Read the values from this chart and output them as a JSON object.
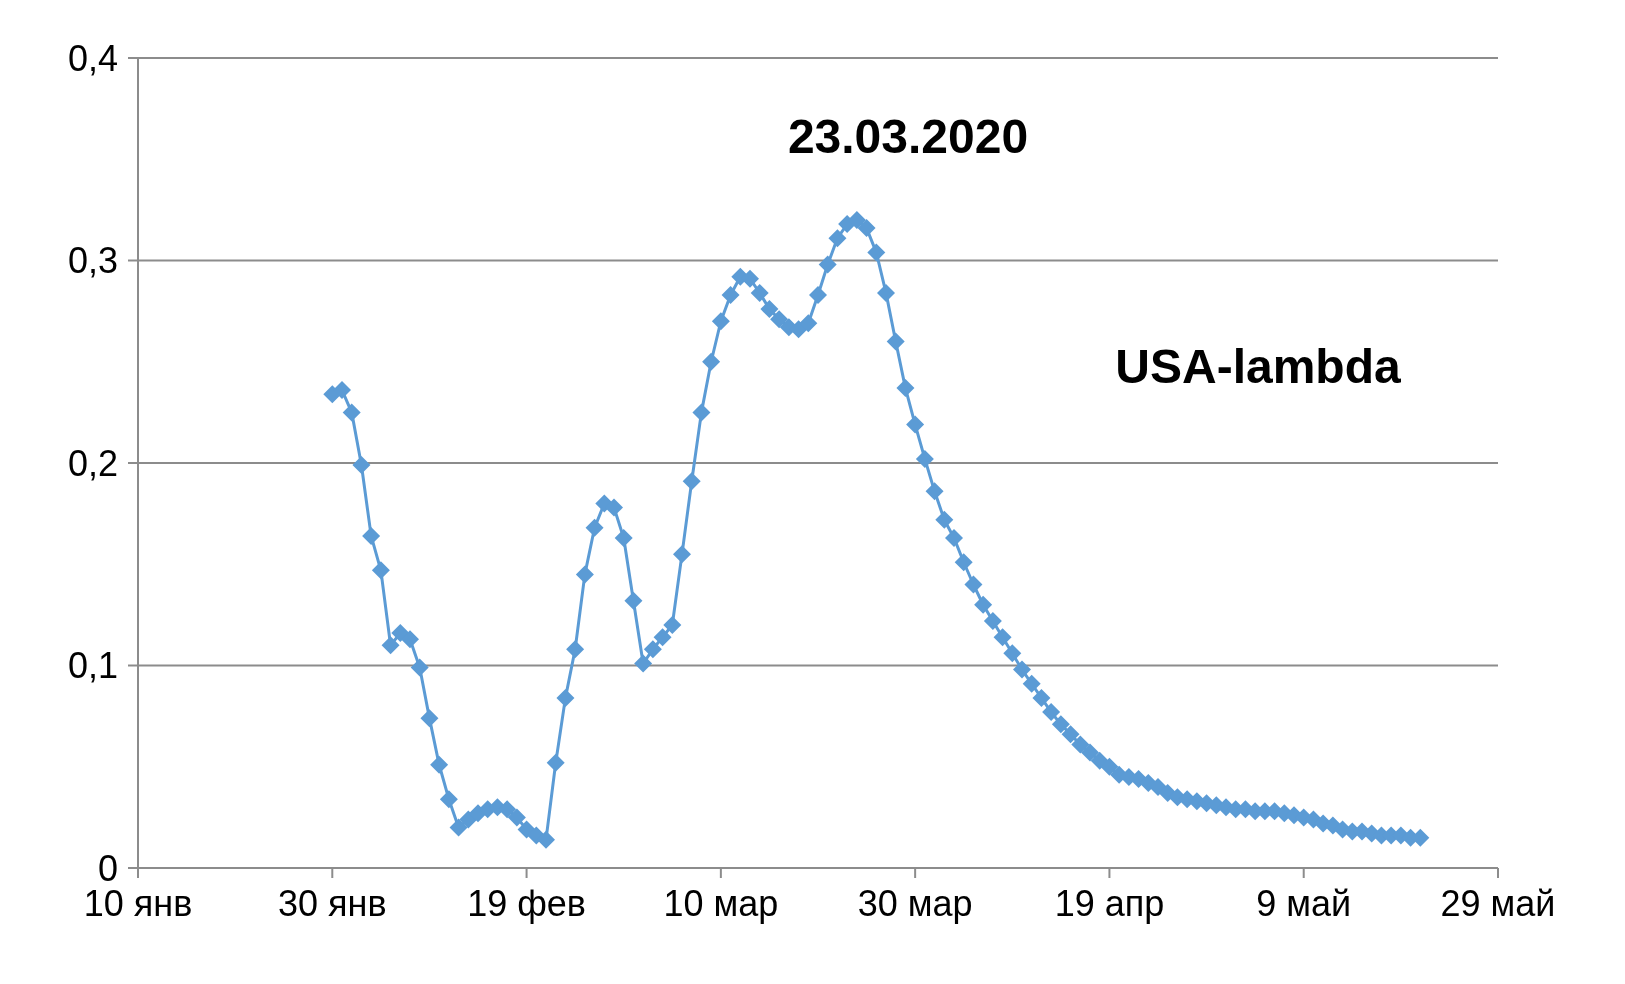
{
  "chart_data": {
    "type": "line",
    "annotations": [
      "23.03.2020"
    ],
    "x": [
      "2020-01-30",
      "2020-01-31",
      "2020-02-01",
      "2020-02-02",
      "2020-02-03",
      "2020-02-04",
      "2020-02-05",
      "2020-02-06",
      "2020-02-07",
      "2020-02-08",
      "2020-02-09",
      "2020-02-10",
      "2020-02-11",
      "2020-02-12",
      "2020-02-13",
      "2020-02-14",
      "2020-02-15",
      "2020-02-16",
      "2020-02-17",
      "2020-02-18",
      "2020-02-19",
      "2020-02-20",
      "2020-02-21",
      "2020-02-22",
      "2020-02-23",
      "2020-02-24",
      "2020-02-25",
      "2020-02-26",
      "2020-02-27",
      "2020-02-28",
      "2020-02-29",
      "2020-03-01",
      "2020-03-02",
      "2020-03-03",
      "2020-03-04",
      "2020-03-05",
      "2020-03-06",
      "2020-03-07",
      "2020-03-08",
      "2020-03-09",
      "2020-03-10",
      "2020-03-11",
      "2020-03-12",
      "2020-03-13",
      "2020-03-14",
      "2020-03-15",
      "2020-03-16",
      "2020-03-17",
      "2020-03-18",
      "2020-03-19",
      "2020-03-20",
      "2020-03-21",
      "2020-03-22",
      "2020-03-23",
      "2020-03-24",
      "2020-03-25",
      "2020-03-26",
      "2020-03-27",
      "2020-03-28",
      "2020-03-29",
      "2020-03-30",
      "2020-03-31",
      "2020-04-01",
      "2020-04-02",
      "2020-04-03",
      "2020-04-04",
      "2020-04-05",
      "2020-04-06",
      "2020-04-07",
      "2020-04-08",
      "2020-04-09",
      "2020-04-10",
      "2020-04-11",
      "2020-04-12",
      "2020-04-13",
      "2020-04-14",
      "2020-04-15",
      "2020-04-16",
      "2020-04-17",
      "2020-04-18",
      "2020-04-19",
      "2020-04-20",
      "2020-04-21",
      "2020-04-22",
      "2020-04-23",
      "2020-04-24",
      "2020-04-25",
      "2020-04-26",
      "2020-04-27",
      "2020-04-28",
      "2020-04-29",
      "2020-04-30",
      "2020-05-01",
      "2020-05-02",
      "2020-05-03",
      "2020-05-04",
      "2020-05-05",
      "2020-05-06",
      "2020-05-07",
      "2020-05-08",
      "2020-05-09",
      "2020-05-10",
      "2020-05-11",
      "2020-05-12",
      "2020-05-13",
      "2020-05-14",
      "2020-05-15",
      "2020-05-16",
      "2020-05-17",
      "2020-05-18",
      "2020-05-19",
      "2020-05-20",
      "2020-05-21"
    ],
    "series": [
      {
        "name": "USA-lambda",
        "color": "#5b9bd5",
        "values": [
          0.234,
          0.236,
          0.225,
          0.199,
          0.164,
          0.147,
          0.11,
          0.116,
          0.113,
          0.099,
          0.074,
          0.051,
          0.034,
          0.02,
          0.024,
          0.027,
          0.029,
          0.03,
          0.029,
          0.025,
          0.019,
          0.016,
          0.014,
          0.052,
          0.084,
          0.108,
          0.145,
          0.168,
          0.18,
          0.178,
          0.163,
          0.132,
          0.101,
          0.108,
          0.114,
          0.12,
          0.155,
          0.191,
          0.225,
          0.25,
          0.27,
          0.283,
          0.292,
          0.291,
          0.284,
          0.276,
          0.271,
          0.267,
          0.266,
          0.269,
          0.283,
          0.298,
          0.311,
          0.318,
          0.32,
          0.316,
          0.304,
          0.284,
          0.26,
          0.237,
          0.219,
          0.202,
          0.186,
          0.172,
          0.163,
          0.151,
          0.14,
          0.13,
          0.122,
          0.114,
          0.106,
          0.098,
          0.091,
          0.084,
          0.077,
          0.071,
          0.066,
          0.061,
          0.057,
          0.053,
          0.05,
          0.046,
          0.045,
          0.044,
          0.042,
          0.04,
          0.037,
          0.035,
          0.034,
          0.033,
          0.032,
          0.031,
          0.03,
          0.029,
          0.029,
          0.028,
          0.028,
          0.028,
          0.027,
          0.026,
          0.025,
          0.024,
          0.022,
          0.021,
          0.019,
          0.018,
          0.018,
          0.017,
          0.016,
          0.016,
          0.016,
          0.015,
          0.015
        ]
      }
    ],
    "xlim": [
      "2020-01-10",
      "2020-05-29"
    ],
    "xticks": [
      {
        "value": "2020-01-10",
        "label": "10 янв"
      },
      {
        "value": "2020-01-30",
        "label": "30 янв"
      },
      {
        "value": "2020-02-19",
        "label": "19 фев"
      },
      {
        "value": "2020-03-10",
        "label": "10 мар"
      },
      {
        "value": "2020-03-30",
        "label": "30 мар"
      },
      {
        "value": "2020-04-19",
        "label": "19 апр"
      },
      {
        "value": "2020-05-09",
        "label": "9 май"
      },
      {
        "value": "2020-05-29",
        "label": "29 май"
      }
    ],
    "ylim": [
      0,
      0.4
    ],
    "yticks": [
      0,
      {
        "value": 0.1,
        "label": "0,1"
      },
      {
        "value": 0.2,
        "label": "0,2"
      },
      {
        "value": 0.3,
        "label": "0,3"
      },
      {
        "value": 0.4,
        "label": "0,4"
      }
    ],
    "grid": "y",
    "marker": "diamond",
    "line_style": "solid"
  }
}
